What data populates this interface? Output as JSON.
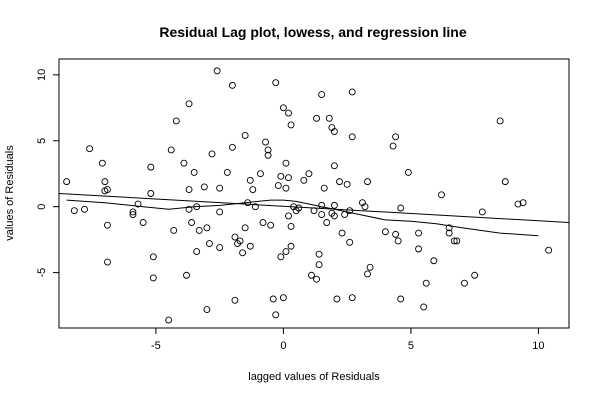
{
  "chart_data": {
    "type": "scatter",
    "title": "Residual Lag plot, lowess, and regression line",
    "xlabel": "lagged values of Residuals",
    "ylabel": "values of Residuals",
    "xlim": [
      -8.8,
      11.2
    ],
    "ylim": [
      -9.2,
      11.2
    ],
    "x_ticks": [
      -5,
      0,
      5,
      10
    ],
    "y_ticks": [
      -5,
      0,
      5,
      10
    ],
    "grid": false,
    "points": [
      [
        -8.5,
        1.9
      ],
      [
        -8.2,
        -0.3
      ],
      [
        -7.8,
        -0.2
      ],
      [
        -7.6,
        4.4
      ],
      [
        -7.1,
        3.3
      ],
      [
        -7.0,
        1.9
      ],
      [
        -7.0,
        1.2
      ],
      [
        -6.9,
        1.3
      ],
      [
        -6.9,
        -1.4
      ],
      [
        -6.9,
        -4.2
      ],
      [
        -5.9,
        -0.4
      ],
      [
        -5.9,
        -0.6
      ],
      [
        -5.7,
        0.2
      ],
      [
        -5.5,
        -1.2
      ],
      [
        -5.2,
        3.0
      ],
      [
        -5.2,
        1.0
      ],
      [
        -5.1,
        -3.8
      ],
      [
        -5.1,
        -5.4
      ],
      [
        -4.5,
        -8.6
      ],
      [
        -4.4,
        4.3
      ],
      [
        -4.3,
        -1.8
      ],
      [
        -4.2,
        6.5
      ],
      [
        -3.9,
        3.3
      ],
      [
        -3.8,
        -5.2
      ],
      [
        -3.7,
        7.8
      ],
      [
        -3.7,
        -0.2
      ],
      [
        -3.7,
        1.3
      ],
      [
        -3.6,
        -1.2
      ],
      [
        -3.5,
        2.6
      ],
      [
        -3.4,
        -3.4
      ],
      [
        -3.4,
        0.0
      ],
      [
        -3.3,
        -1.8
      ],
      [
        -3.1,
        1.5
      ],
      [
        -3.0,
        -1.6
      ],
      [
        -3.0,
        -7.8
      ],
      [
        -2.9,
        -2.8
      ],
      [
        -2.8,
        4.0
      ],
      [
        -2.6,
        10.3
      ],
      [
        -2.5,
        -3.1
      ],
      [
        -2.5,
        -0.4
      ],
      [
        -2.5,
        1.4
      ],
      [
        -2.2,
        2.6
      ],
      [
        -2.0,
        9.2
      ],
      [
        -2.0,
        4.5
      ],
      [
        -1.9,
        -2.3
      ],
      [
        -1.9,
        -7.1
      ],
      [
        -1.8,
        -2.8
      ],
      [
        -1.7,
        -2.6
      ],
      [
        -1.6,
        -3.5
      ],
      [
        -1.5,
        -1.6
      ],
      [
        -1.5,
        5.4
      ],
      [
        -1.4,
        0.3
      ],
      [
        -1.3,
        -3.0
      ],
      [
        -1.3,
        2.0
      ],
      [
        -1.2,
        1.3
      ],
      [
        -1.1,
        0.0
      ],
      [
        -0.9,
        2.5
      ],
      [
        -0.8,
        -1.2
      ],
      [
        -0.7,
        4.9
      ],
      [
        -0.6,
        4.3
      ],
      [
        -0.6,
        3.9
      ],
      [
        -0.5,
        -1.4
      ],
      [
        -0.4,
        -7.0
      ],
      [
        -0.3,
        9.4
      ],
      [
        -0.3,
        -8.2
      ],
      [
        -0.2,
        1.6
      ],
      [
        -0.1,
        2.3
      ],
      [
        -0.1,
        -3.8
      ],
      [
        0.0,
        7.5
      ],
      [
        0.0,
        -6.9
      ],
      [
        0.1,
        3.3
      ],
      [
        0.1,
        1.4
      ],
      [
        0.1,
        -3.4
      ],
      [
        0.2,
        7.1
      ],
      [
        0.2,
        2.2
      ],
      [
        0.2,
        -0.7
      ],
      [
        0.3,
        6.2
      ],
      [
        0.3,
        -1.5
      ],
      [
        0.3,
        -3.0
      ],
      [
        0.4,
        0.0
      ],
      [
        0.5,
        -0.3
      ],
      [
        0.6,
        -0.1
      ],
      [
        0.8,
        2.0
      ],
      [
        1.0,
        2.5
      ],
      [
        1.1,
        -5.2
      ],
      [
        1.2,
        -0.3
      ],
      [
        1.3,
        -5.5
      ],
      [
        1.3,
        6.7
      ],
      [
        1.4,
        -4.4
      ],
      [
        1.4,
        -3.6
      ],
      [
        1.5,
        8.5
      ],
      [
        1.5,
        0.1
      ],
      [
        1.5,
        -0.6
      ],
      [
        1.6,
        1.4
      ],
      [
        1.7,
        -1.2
      ],
      [
        1.8,
        6.7
      ],
      [
        1.9,
        6.0
      ],
      [
        1.9,
        -0.5
      ],
      [
        2.0,
        5.7
      ],
      [
        2.0,
        3.1
      ],
      [
        2.0,
        0.1
      ],
      [
        2.0,
        -0.7
      ],
      [
        2.1,
        -7.0
      ],
      [
        2.2,
        1.9
      ],
      [
        2.3,
        -2.0
      ],
      [
        2.4,
        -0.6
      ],
      [
        2.5,
        1.7
      ],
      [
        2.6,
        -0.3
      ],
      [
        2.6,
        -2.7
      ],
      [
        2.7,
        8.7
      ],
      [
        2.7,
        -6.9
      ],
      [
        2.7,
        5.3
      ],
      [
        3.1,
        0.3
      ],
      [
        3.2,
        0.0
      ],
      [
        3.3,
        -5.1
      ],
      [
        3.3,
        1.9
      ],
      [
        3.4,
        -4.6
      ],
      [
        4.0,
        -1.9
      ],
      [
        4.3,
        4.6
      ],
      [
        4.4,
        5.3
      ],
      [
        4.4,
        -2.1
      ],
      [
        4.5,
        -2.6
      ],
      [
        4.6,
        -0.1
      ],
      [
        4.6,
        -7.0
      ],
      [
        4.9,
        2.6
      ],
      [
        5.3,
        -3.2
      ],
      [
        5.3,
        -2.0
      ],
      [
        5.5,
        -7.6
      ],
      [
        5.6,
        -5.8
      ],
      [
        5.9,
        -4.1
      ],
      [
        6.2,
        0.9
      ],
      [
        6.5,
        -1.6
      ],
      [
        6.5,
        -2.0
      ],
      [
        6.7,
        -2.6
      ],
      [
        6.8,
        -2.6
      ],
      [
        7.1,
        -5.8
      ],
      [
        7.5,
        -5.2
      ],
      [
        7.8,
        -0.4
      ],
      [
        8.5,
        6.5
      ],
      [
        8.7,
        1.9
      ],
      [
        9.2,
        0.2
      ],
      [
        9.4,
        0.3
      ],
      [
        10.4,
        -3.3
      ]
    ],
    "lowess": [
      [
        -8.5,
        0.5
      ],
      [
        -7.0,
        0.3
      ],
      [
        -5.5,
        0.0
      ],
      [
        -4.5,
        -0.2
      ],
      [
        -3.5,
        0.0
      ],
      [
        -2.5,
        0.1
      ],
      [
        -1.5,
        0.3
      ],
      [
        -0.5,
        0.5
      ],
      [
        0.0,
        0.5
      ],
      [
        0.5,
        0.4
      ],
      [
        1.0,
        0.2
      ],
      [
        1.5,
        0.0
      ],
      [
        2.0,
        -0.2
      ],
      [
        3.0,
        -0.6
      ],
      [
        4.0,
        -1.0
      ],
      [
        5.0,
        -1.1
      ],
      [
        6.0,
        -1.3
      ],
      [
        7.0,
        -1.6
      ],
      [
        8.5,
        -2.0
      ],
      [
        10.0,
        -2.2
      ]
    ],
    "regression": [
      [
        -8.8,
        1.0
      ],
      [
        11.2,
        -1.2
      ]
    ]
  }
}
